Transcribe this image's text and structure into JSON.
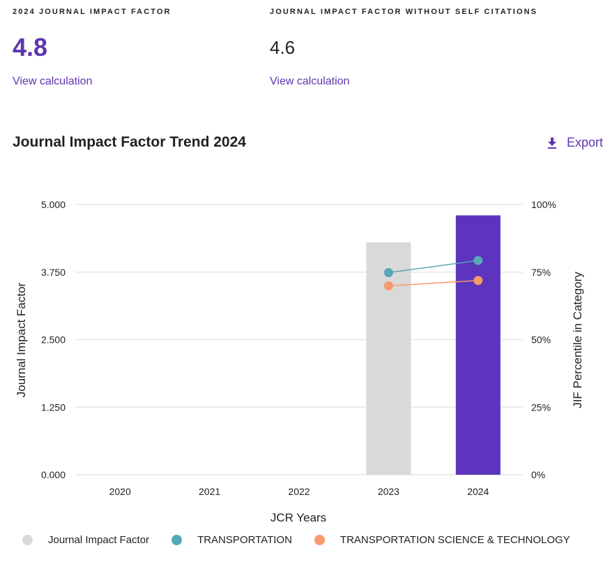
{
  "metrics": [
    {
      "label": "2024 JOURNAL IMPACT FACTOR",
      "value": "4.8",
      "link": "View calculation"
    },
    {
      "label": "JOURNAL IMPACT FACTOR WITHOUT SELF CITATIONS",
      "value": "4.6",
      "link": "View calculation"
    }
  ],
  "trend": {
    "title": "Journal Impact Factor Trend 2024",
    "export_label": "Export",
    "export_icon": "download-icon"
  },
  "colors": {
    "accent": "#5e35b1",
    "bar_past": "#d9d9d9",
    "bar_current": "#5c34bd",
    "transportation": "#55a7b9",
    "transportation_sci_tech": "#f89a6a",
    "grid": "#e6e6e6"
  },
  "chart_data": {
    "type": "bar",
    "title": "Journal Impact Factor Trend 2024",
    "xlabel": "JCR Years",
    "ylabel": "Journal Impact Factor",
    "y2label": "JIF Percentile in Category",
    "categories": [
      "2020",
      "2021",
      "2022",
      "2023",
      "2024"
    ],
    "ylim": [
      0,
      5
    ],
    "yticks": [
      "0.000",
      "1.250",
      "2.500",
      "3.750",
      "5.000"
    ],
    "y2lim": [
      0,
      100
    ],
    "y2ticks": [
      "0%",
      "25%",
      "50%",
      "75%",
      "100%"
    ],
    "grid": true,
    "legend_position": "bottom",
    "series": [
      {
        "name": "Journal Impact Factor",
        "kind": "bar",
        "axis": "left",
        "values": [
          null,
          null,
          null,
          4.3,
          4.8
        ]
      },
      {
        "name": "TRANSPORTATION",
        "kind": "line",
        "axis": "right",
        "values": [
          null,
          null,
          null,
          74.8,
          79.3
        ]
      },
      {
        "name": "TRANSPORTATION SCIENCE & TECHNOLOGY",
        "kind": "line",
        "axis": "right",
        "values": [
          null,
          null,
          null,
          69.9,
          71.9
        ]
      }
    ]
  }
}
